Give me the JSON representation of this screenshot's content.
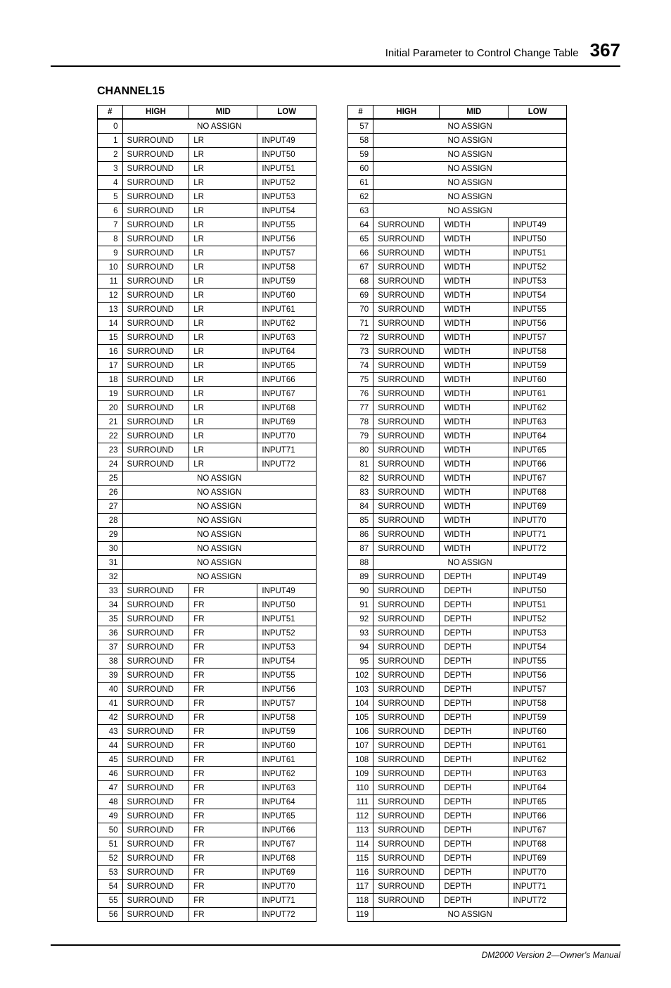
{
  "header": {
    "title": "Initial Parameter to Control Change Table",
    "page_number": "367"
  },
  "section_title": "CHANNEL15",
  "columns": [
    "#",
    "HIGH",
    "MID",
    "LOW"
  ],
  "no_assign_label": "NO ASSIGN",
  "left_rows": [
    {
      "n": 0,
      "na": true
    },
    {
      "n": 1,
      "h": "SURROUND",
      "m": "LR",
      "l": "INPUT49"
    },
    {
      "n": 2,
      "h": "SURROUND",
      "m": "LR",
      "l": "INPUT50"
    },
    {
      "n": 3,
      "h": "SURROUND",
      "m": "LR",
      "l": "INPUT51"
    },
    {
      "n": 4,
      "h": "SURROUND",
      "m": "LR",
      "l": "INPUT52"
    },
    {
      "n": 5,
      "h": "SURROUND",
      "m": "LR",
      "l": "INPUT53"
    },
    {
      "n": 6,
      "h": "SURROUND",
      "m": "LR",
      "l": "INPUT54"
    },
    {
      "n": 7,
      "h": "SURROUND",
      "m": "LR",
      "l": "INPUT55"
    },
    {
      "n": 8,
      "h": "SURROUND",
      "m": "LR",
      "l": "INPUT56"
    },
    {
      "n": 9,
      "h": "SURROUND",
      "m": "LR",
      "l": "INPUT57"
    },
    {
      "n": 10,
      "h": "SURROUND",
      "m": "LR",
      "l": "INPUT58"
    },
    {
      "n": 11,
      "h": "SURROUND",
      "m": "LR",
      "l": "INPUT59"
    },
    {
      "n": 12,
      "h": "SURROUND",
      "m": "LR",
      "l": "INPUT60"
    },
    {
      "n": 13,
      "h": "SURROUND",
      "m": "LR",
      "l": "INPUT61"
    },
    {
      "n": 14,
      "h": "SURROUND",
      "m": "LR",
      "l": "INPUT62"
    },
    {
      "n": 15,
      "h": "SURROUND",
      "m": "LR",
      "l": "INPUT63"
    },
    {
      "n": 16,
      "h": "SURROUND",
      "m": "LR",
      "l": "INPUT64"
    },
    {
      "n": 17,
      "h": "SURROUND",
      "m": "LR",
      "l": "INPUT65"
    },
    {
      "n": 18,
      "h": "SURROUND",
      "m": "LR",
      "l": "INPUT66"
    },
    {
      "n": 19,
      "h": "SURROUND",
      "m": "LR",
      "l": "INPUT67"
    },
    {
      "n": 20,
      "h": "SURROUND",
      "m": "LR",
      "l": "INPUT68"
    },
    {
      "n": 21,
      "h": "SURROUND",
      "m": "LR",
      "l": "INPUT69"
    },
    {
      "n": 22,
      "h": "SURROUND",
      "m": "LR",
      "l": "INPUT70"
    },
    {
      "n": 23,
      "h": "SURROUND",
      "m": "LR",
      "l": "INPUT71"
    },
    {
      "n": 24,
      "h": "SURROUND",
      "m": "LR",
      "l": "INPUT72"
    },
    {
      "n": 25,
      "na": true
    },
    {
      "n": 26,
      "na": true
    },
    {
      "n": 27,
      "na": true
    },
    {
      "n": 28,
      "na": true
    },
    {
      "n": 29,
      "na": true
    },
    {
      "n": 30,
      "na": true
    },
    {
      "n": 31,
      "na": true
    },
    {
      "n": 32,
      "na": true
    },
    {
      "n": 33,
      "h": "SURROUND",
      "m": "FR",
      "l": "INPUT49"
    },
    {
      "n": 34,
      "h": "SURROUND",
      "m": "FR",
      "l": "INPUT50"
    },
    {
      "n": 35,
      "h": "SURROUND",
      "m": "FR",
      "l": "INPUT51"
    },
    {
      "n": 36,
      "h": "SURROUND",
      "m": "FR",
      "l": "INPUT52"
    },
    {
      "n": 37,
      "h": "SURROUND",
      "m": "FR",
      "l": "INPUT53"
    },
    {
      "n": 38,
      "h": "SURROUND",
      "m": "FR",
      "l": "INPUT54"
    },
    {
      "n": 39,
      "h": "SURROUND",
      "m": "FR",
      "l": "INPUT55"
    },
    {
      "n": 40,
      "h": "SURROUND",
      "m": "FR",
      "l": "INPUT56"
    },
    {
      "n": 41,
      "h": "SURROUND",
      "m": "FR",
      "l": "INPUT57"
    },
    {
      "n": 42,
      "h": "SURROUND",
      "m": "FR",
      "l": "INPUT58"
    },
    {
      "n": 43,
      "h": "SURROUND",
      "m": "FR",
      "l": "INPUT59"
    },
    {
      "n": 44,
      "h": "SURROUND",
      "m": "FR",
      "l": "INPUT60"
    },
    {
      "n": 45,
      "h": "SURROUND",
      "m": "FR",
      "l": "INPUT61"
    },
    {
      "n": 46,
      "h": "SURROUND",
      "m": "FR",
      "l": "INPUT62"
    },
    {
      "n": 47,
      "h": "SURROUND",
      "m": "FR",
      "l": "INPUT63"
    },
    {
      "n": 48,
      "h": "SURROUND",
      "m": "FR",
      "l": "INPUT64"
    },
    {
      "n": 49,
      "h": "SURROUND",
      "m": "FR",
      "l": "INPUT65"
    },
    {
      "n": 50,
      "h": "SURROUND",
      "m": "FR",
      "l": "INPUT66"
    },
    {
      "n": 51,
      "h": "SURROUND",
      "m": "FR",
      "l": "INPUT67"
    },
    {
      "n": 52,
      "h": "SURROUND",
      "m": "FR",
      "l": "INPUT68"
    },
    {
      "n": 53,
      "h": "SURROUND",
      "m": "FR",
      "l": "INPUT69"
    },
    {
      "n": 54,
      "h": "SURROUND",
      "m": "FR",
      "l": "INPUT70"
    },
    {
      "n": 55,
      "h": "SURROUND",
      "m": "FR",
      "l": "INPUT71"
    },
    {
      "n": 56,
      "h": "SURROUND",
      "m": "FR",
      "l": "INPUT72"
    }
  ],
  "right_rows": [
    {
      "n": 57,
      "na": true
    },
    {
      "n": 58,
      "na": true
    },
    {
      "n": 59,
      "na": true
    },
    {
      "n": 60,
      "na": true
    },
    {
      "n": 61,
      "na": true
    },
    {
      "n": 62,
      "na": true
    },
    {
      "n": 63,
      "na": true
    },
    {
      "n": 64,
      "h": "SURROUND",
      "m": "WIDTH",
      "l": "INPUT49"
    },
    {
      "n": 65,
      "h": "SURROUND",
      "m": "WIDTH",
      "l": "INPUT50"
    },
    {
      "n": 66,
      "h": "SURROUND",
      "m": "WIDTH",
      "l": "INPUT51"
    },
    {
      "n": 67,
      "h": "SURROUND",
      "m": "WIDTH",
      "l": "INPUT52"
    },
    {
      "n": 68,
      "h": "SURROUND",
      "m": "WIDTH",
      "l": "INPUT53"
    },
    {
      "n": 69,
      "h": "SURROUND",
      "m": "WIDTH",
      "l": "INPUT54"
    },
    {
      "n": 70,
      "h": "SURROUND",
      "m": "WIDTH",
      "l": "INPUT55"
    },
    {
      "n": 71,
      "h": "SURROUND",
      "m": "WIDTH",
      "l": "INPUT56"
    },
    {
      "n": 72,
      "h": "SURROUND",
      "m": "WIDTH",
      "l": "INPUT57"
    },
    {
      "n": 73,
      "h": "SURROUND",
      "m": "WIDTH",
      "l": "INPUT58"
    },
    {
      "n": 74,
      "h": "SURROUND",
      "m": "WIDTH",
      "l": "INPUT59"
    },
    {
      "n": 75,
      "h": "SURROUND",
      "m": "WIDTH",
      "l": "INPUT60"
    },
    {
      "n": 76,
      "h": "SURROUND",
      "m": "WIDTH",
      "l": "INPUT61"
    },
    {
      "n": 77,
      "h": "SURROUND",
      "m": "WIDTH",
      "l": "INPUT62"
    },
    {
      "n": 78,
      "h": "SURROUND",
      "m": "WIDTH",
      "l": "INPUT63"
    },
    {
      "n": 79,
      "h": "SURROUND",
      "m": "WIDTH",
      "l": "INPUT64"
    },
    {
      "n": 80,
      "h": "SURROUND",
      "m": "WIDTH",
      "l": "INPUT65"
    },
    {
      "n": 81,
      "h": "SURROUND",
      "m": "WIDTH",
      "l": "INPUT66"
    },
    {
      "n": 82,
      "h": "SURROUND",
      "m": "WIDTH",
      "l": "INPUT67"
    },
    {
      "n": 83,
      "h": "SURROUND",
      "m": "WIDTH",
      "l": "INPUT68"
    },
    {
      "n": 84,
      "h": "SURROUND",
      "m": "WIDTH",
      "l": "INPUT69"
    },
    {
      "n": 85,
      "h": "SURROUND",
      "m": "WIDTH",
      "l": "INPUT70"
    },
    {
      "n": 86,
      "h": "SURROUND",
      "m": "WIDTH",
      "l": "INPUT71"
    },
    {
      "n": 87,
      "h": "SURROUND",
      "m": "WIDTH",
      "l": "INPUT72"
    },
    {
      "n": 88,
      "na": true
    },
    {
      "n": 89,
      "h": "SURROUND",
      "m": "DEPTH",
      "l": "INPUT49"
    },
    {
      "n": 90,
      "h": "SURROUND",
      "m": "DEPTH",
      "l": "INPUT50"
    },
    {
      "n": 91,
      "h": "SURROUND",
      "m": "DEPTH",
      "l": "INPUT51"
    },
    {
      "n": 92,
      "h": "SURROUND",
      "m": "DEPTH",
      "l": "INPUT52"
    },
    {
      "n": 93,
      "h": "SURROUND",
      "m": "DEPTH",
      "l": "INPUT53"
    },
    {
      "n": 94,
      "h": "SURROUND",
      "m": "DEPTH",
      "l": "INPUT54"
    },
    {
      "n": 95,
      "h": "SURROUND",
      "m": "DEPTH",
      "l": "INPUT55"
    },
    {
      "n": 102,
      "h": "SURROUND",
      "m": "DEPTH",
      "l": "INPUT56"
    },
    {
      "n": 103,
      "h": "SURROUND",
      "m": "DEPTH",
      "l": "INPUT57"
    },
    {
      "n": 104,
      "h": "SURROUND",
      "m": "DEPTH",
      "l": "INPUT58"
    },
    {
      "n": 105,
      "h": "SURROUND",
      "m": "DEPTH",
      "l": "INPUT59"
    },
    {
      "n": 106,
      "h": "SURROUND",
      "m": "DEPTH",
      "l": "INPUT60"
    },
    {
      "n": 107,
      "h": "SURROUND",
      "m": "DEPTH",
      "l": "INPUT61"
    },
    {
      "n": 108,
      "h": "SURROUND",
      "m": "DEPTH",
      "l": "INPUT62"
    },
    {
      "n": 109,
      "h": "SURROUND",
      "m": "DEPTH",
      "l": "INPUT63"
    },
    {
      "n": 110,
      "h": "SURROUND",
      "m": "DEPTH",
      "l": "INPUT64"
    },
    {
      "n": 111,
      "h": "SURROUND",
      "m": "DEPTH",
      "l": "INPUT65"
    },
    {
      "n": 112,
      "h": "SURROUND",
      "m": "DEPTH",
      "l": "INPUT66"
    },
    {
      "n": 113,
      "h": "SURROUND",
      "m": "DEPTH",
      "l": "INPUT67"
    },
    {
      "n": 114,
      "h": "SURROUND",
      "m": "DEPTH",
      "l": "INPUT68"
    },
    {
      "n": 115,
      "h": "SURROUND",
      "m": "DEPTH",
      "l": "INPUT69"
    },
    {
      "n": 116,
      "h": "SURROUND",
      "m": "DEPTH",
      "l": "INPUT70"
    },
    {
      "n": 117,
      "h": "SURROUND",
      "m": "DEPTH",
      "l": "INPUT71"
    },
    {
      "n": 118,
      "h": "SURROUND",
      "m": "DEPTH",
      "l": "INPUT72"
    },
    {
      "n": 119,
      "na": true
    }
  ],
  "footer": "DM2000 Version 2—Owner's Manual"
}
